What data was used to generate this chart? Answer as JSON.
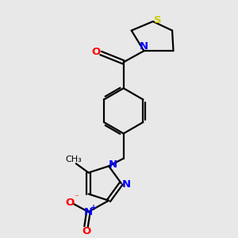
{
  "bg_color": "#e8e8e8",
  "bond_color": "#000000",
  "atom_colors": {
    "N": "#0000ff",
    "O": "#ff0000",
    "S": "#cccc00",
    "C": "#000000"
  },
  "figsize": [
    3.0,
    3.0
  ],
  "dpi": 100
}
